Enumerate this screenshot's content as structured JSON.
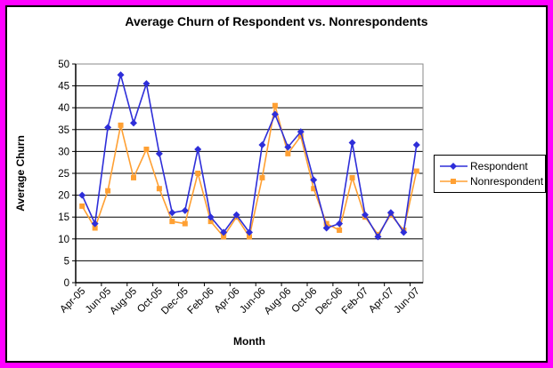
{
  "window": {
    "frame_border_color": "#FF00FF",
    "inner_border_color": "#000000",
    "background_color": "#FFFFFF"
  },
  "chart": {
    "title": "Average Churn of Respondent vs. Nonrespondents",
    "xlabel": "Month",
    "ylabel": "Average Churn"
  },
  "chart_data": {
    "type": "line",
    "title": "Average Churn of Respondent vs. Nonrespondents",
    "xlabel": "Month",
    "ylabel": "Average Churn",
    "x": [
      "Apr-05",
      "May-05",
      "Jun-05",
      "Jul-05",
      "Aug-05",
      "Sep-05",
      "Oct-05",
      "Nov-05",
      "Dec-05",
      "Jan-06",
      "Feb-06",
      "Mar-06",
      "Apr-06",
      "May-06",
      "Jun-06",
      "Jul-06",
      "Aug-06",
      "Sep-06",
      "Oct-06",
      "Nov-06",
      "Dec-06",
      "Jan-07",
      "Feb-07",
      "Mar-07",
      "Apr-07",
      "May-07",
      "Jun-07"
    ],
    "xtick_labels": [
      "Apr-05",
      "Jun-05",
      "Aug-05",
      "Oct-05",
      "Dec-05",
      "Feb-06",
      "Apr-06",
      "Jun-06",
      "Aug-06",
      "Oct-06",
      "Dec-06",
      "Feb-07",
      "Apr-07",
      "Jun-07"
    ],
    "xtick_label_every": 2,
    "series": [
      {
        "name": "Respondent",
        "color": "#2E2ED9",
        "marker": "diamond",
        "values": [
          20,
          13.5,
          35.5,
          47.5,
          36.5,
          45.5,
          29.5,
          16,
          16.5,
          30.5,
          15,
          11.5,
          15.5,
          11.5,
          31.5,
          38.5,
          31,
          34.5,
          23.5,
          12.5,
          13.5,
          32,
          15.5,
          10.5,
          16,
          11.5,
          31.5
        ]
      },
      {
        "name": "Nonrespondent",
        "color": "#FFA033",
        "marker": "square",
        "values": [
          17.5,
          12.5,
          21,
          36,
          24,
          30.5,
          21.5,
          14,
          13.5,
          25,
          14,
          10.5,
          15,
          10.5,
          24,
          40.5,
          29.5,
          33.5,
          21.5,
          13.5,
          12,
          24,
          15,
          11,
          15.5,
          12,
          25.5
        ]
      }
    ],
    "ylim": [
      0,
      50
    ],
    "yticks": [
      0,
      5,
      10,
      15,
      20,
      25,
      30,
      35,
      40,
      45,
      50
    ],
    "grid": true,
    "gridline_color": "#000000",
    "plot_border_color": "#888888",
    "legend_position": "right"
  }
}
